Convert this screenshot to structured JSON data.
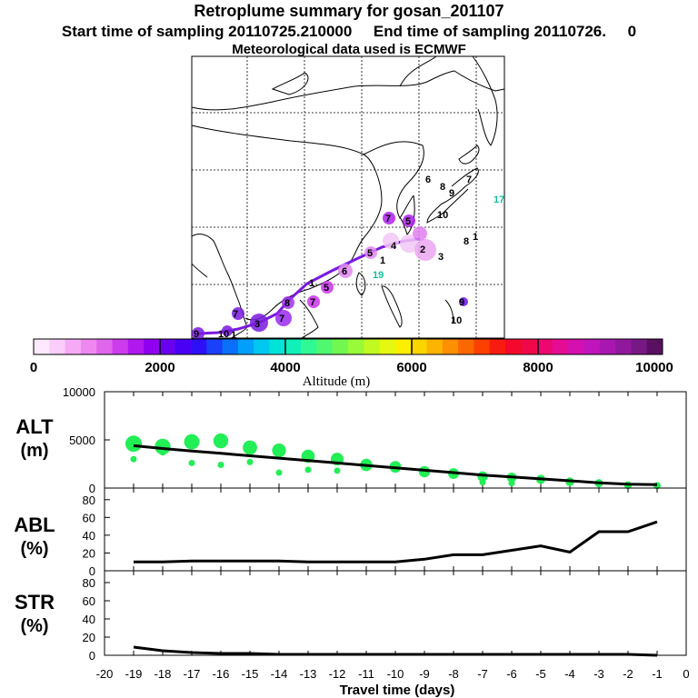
{
  "header": {
    "title": "Retroplume summary for gosan_201107",
    "sampling_line": "Start time of sampling 20110725.210000     End time of sampling 20110726.     0",
    "met_line": "Meteorological data used is ECMWF"
  },
  "map": {
    "plume_labels": [
      "1",
      "2",
      "3",
      "4",
      "5",
      "6",
      "7",
      "8",
      "9",
      "10",
      "17",
      "19",
      "1",
      "1",
      "1",
      "1"
    ]
  },
  "colorbar": {
    "ticks": [
      "0",
      "2000",
      "4000",
      "6000",
      "8000",
      "10000"
    ],
    "label": "Altitude (m)",
    "colors": [
      "#fde9fd",
      "#fbcdfb",
      "#f6aaf6",
      "#ee88f0",
      "#e066ec",
      "#cc3cec",
      "#b018ee",
      "#9000f0",
      "#6a00f0",
      "#4a00f4",
      "#2e10f8",
      "#1a40fa",
      "#0a70fc",
      "#00a0fc",
      "#00c8f0",
      "#00e4d8",
      "#10f0b8",
      "#30f894",
      "#50f870",
      "#70f850",
      "#98fa38",
      "#c0fa20",
      "#e4f810",
      "#fcf000",
      "#fcd400",
      "#fcb400",
      "#fc9000",
      "#fc6800",
      "#fc4000",
      "#f81c10",
      "#f4082c",
      "#f00848",
      "#ec0870",
      "#e40c94",
      "#d410b0",
      "#c014bc",
      "#a818b0",
      "#90189c",
      "#781884",
      "#5a1060"
    ]
  },
  "chart_data": [
    {
      "type": "line",
      "panel": "ALT",
      "ylabel": "ALT\n(m)",
      "ylim": [
        0,
        10000
      ],
      "yticks": [
        "10000",
        "5000",
        "0"
      ],
      "x": [
        -19,
        -18,
        -17,
        -16,
        -15,
        -14,
        -13,
        -12,
        -11,
        -10,
        -9,
        -8,
        -7,
        -6,
        -5,
        -4,
        -3,
        -2,
        -1
      ],
      "series": [
        {
          "name": "mean altitude",
          "values": [
            4400,
            4100,
            3850,
            3600,
            3350,
            3100,
            2850,
            2600,
            2350,
            2100,
            1850,
            1600,
            1350,
            1150,
            950,
            750,
            550,
            400,
            350
          ]
        },
        {
          "name": "cluster altitude (large)",
          "values": [
            4600,
            4300,
            4800,
            4900,
            4200,
            3900,
            3300,
            3000,
            2400,
            2200,
            1700,
            1500,
            1200,
            1100,
            900,
            650,
            500,
            300,
            250
          ]
        },
        {
          "name": "cluster altitude (small)",
          "values": [
            3000,
            3700,
            2600,
            2400,
            2700,
            1600,
            1900,
            1800,
            null,
            null,
            null,
            null,
            600,
            500,
            null,
            null,
            null,
            null,
            null
          ]
        }
      ]
    },
    {
      "type": "line",
      "panel": "ABL",
      "ylabel": "ABL\n(%)",
      "ylim": [
        0,
        90
      ],
      "yticks": [
        "80",
        "60",
        "40",
        "20",
        "0"
      ],
      "x": [
        -19,
        -18,
        -17,
        -16,
        -15,
        -14,
        -13,
        -12,
        -11,
        -10,
        -9,
        -8,
        -7,
        -6,
        -5,
        -4,
        -3,
        -2,
        -1
      ],
      "series": [
        {
          "name": "ABL fraction",
          "values": [
            10,
            10,
            11,
            11,
            11,
            11,
            10,
            10,
            10,
            10,
            13,
            18,
            18,
            23,
            28,
            21,
            44,
            44,
            55
          ]
        }
      ]
    },
    {
      "type": "line",
      "panel": "STR",
      "ylabel": "STR\n(%)",
      "ylim": [
        0,
        90
      ],
      "yticks": [
        "80",
        "60",
        "40",
        "20",
        "0"
      ],
      "x": [
        -19,
        -18,
        -17,
        -16,
        -15,
        -14,
        -13,
        -12,
        -11,
        -10,
        -9,
        -8,
        -7,
        -6,
        -5,
        -4,
        -3,
        -2,
        -1
      ],
      "series": [
        {
          "name": "STR fraction",
          "values": [
            9,
            5,
            3,
            2,
            2,
            1,
            1,
            1,
            1,
            1,
            1,
            1,
            1,
            1,
            1,
            1,
            1,
            1,
            0
          ]
        }
      ]
    }
  ],
  "xaxis": {
    "ticks": [
      "-20",
      "-19",
      "-18",
      "-17",
      "-16",
      "-15",
      "-14",
      "-13",
      "-12",
      "-11",
      "-10",
      "-9",
      "-8",
      "-7",
      "-6",
      "-5",
      "-4",
      "-3",
      "-2",
      "-1",
      "0"
    ],
    "label": "Travel time (days)"
  },
  "style": {
    "alt_marker": "#22ee55",
    "line": "#000000",
    "plume": "#cc33ee",
    "track": "#7a1ae0"
  }
}
